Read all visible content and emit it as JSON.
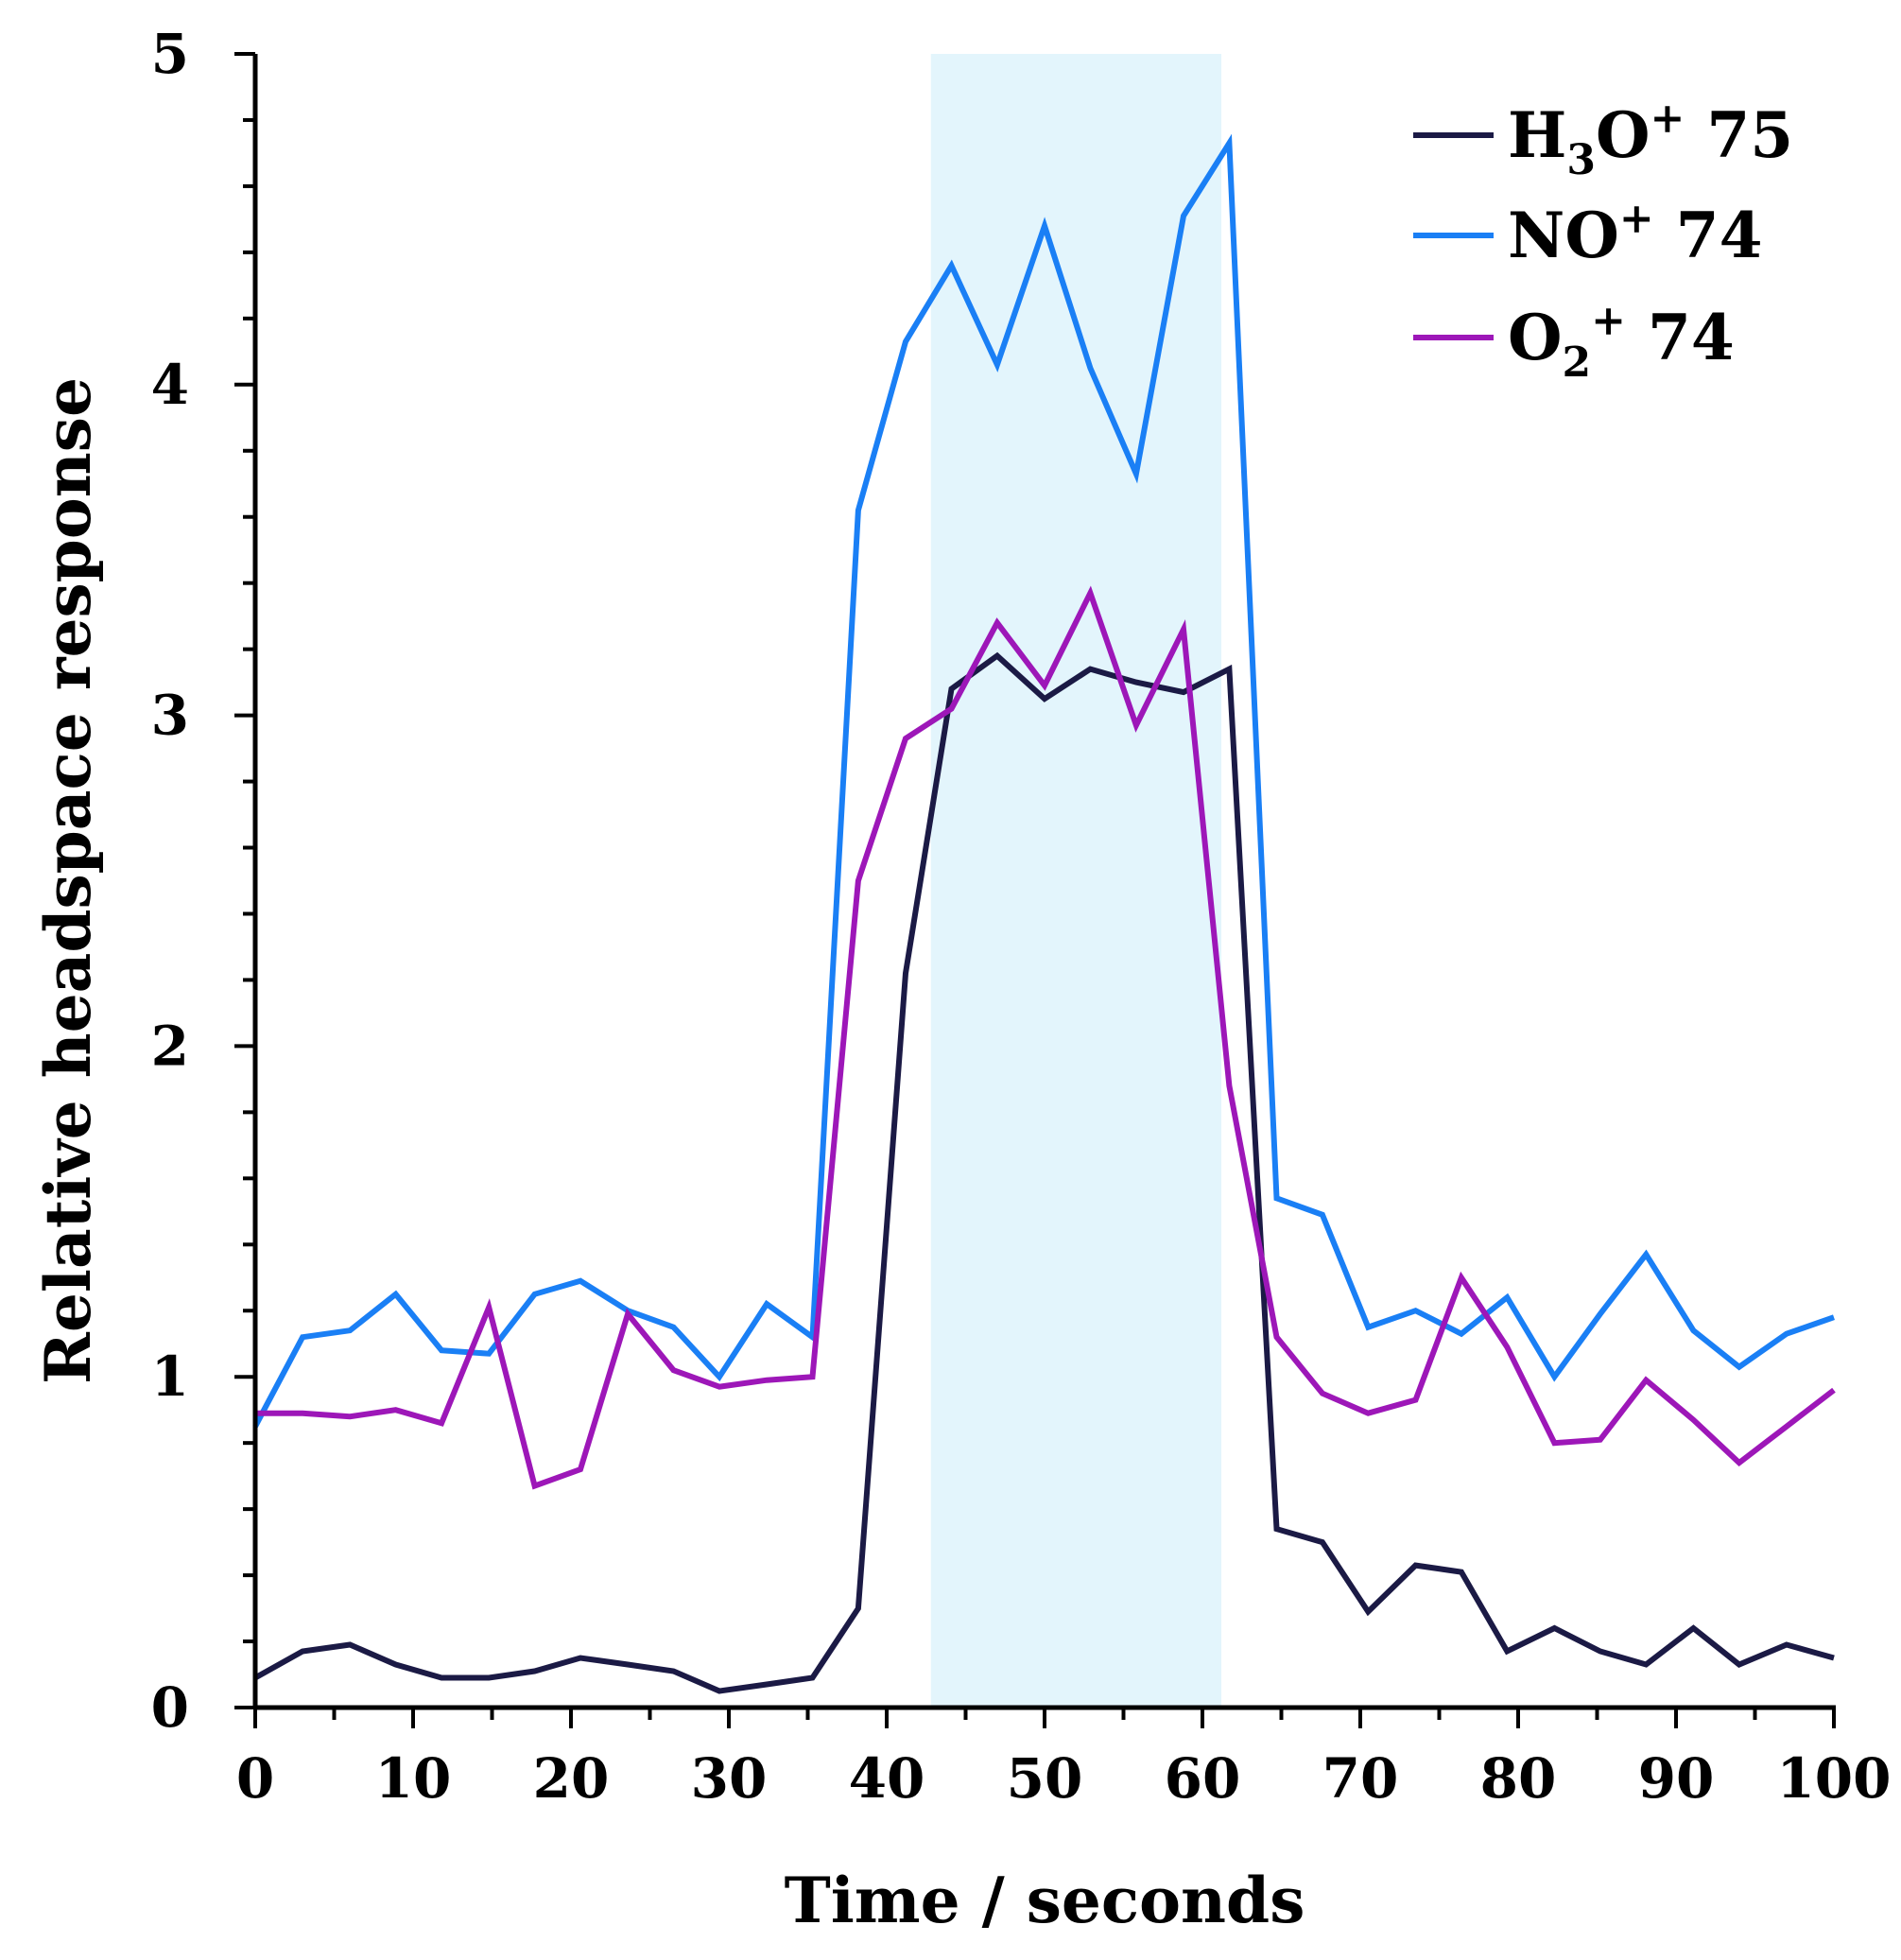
{
  "chart_data": {
    "type": "line",
    "title": "",
    "xlabel": "Time / seconds",
    "ylabel": "Relative headspace response",
    "xlim": [
      0,
      100
    ],
    "ylim": [
      0,
      5
    ],
    "xticks": [
      0,
      10,
      20,
      30,
      40,
      50,
      60,
      70,
      80,
      90,
      100
    ],
    "yticks": [
      0,
      1,
      2,
      3,
      4,
      5
    ],
    "x_tick_labels": [
      "0",
      "10",
      "20",
      "30",
      "40",
      "50",
      "60",
      "70",
      "80",
      "90",
      "100"
    ],
    "y_tick_labels": [
      "0",
      "1",
      "2",
      "3",
      "4",
      "5"
    ],
    "grid": false,
    "legend_position": "top-right",
    "shaded_region": {
      "x_start": 42.8,
      "x_end": 61.2,
      "color": "#e3f5fc"
    },
    "x": [
      0,
      3,
      6,
      8.9,
      11.8,
      14.8,
      17.7,
      20.6,
      23.6,
      26.5,
      29.4,
      32.4,
      35.3,
      38.2,
      41.2,
      44.1,
      47,
      50,
      52.9,
      55.8,
      58.8,
      61.7,
      64.7,
      67.6,
      70.5,
      73.5,
      76.4,
      79.3,
      82.3,
      85.2,
      88.1,
      91.1,
      94,
      97,
      100
    ],
    "series": [
      {
        "name": "H3O+ 75",
        "label_main": "H",
        "label_sub": "3",
        "label_after_sub": "O",
        "label_sup": "+",
        "label_tail": " 75",
        "color": "#1b1a45",
        "values": [
          0.09,
          0.17,
          0.19,
          0.13,
          0.09,
          0.09,
          0.11,
          0.15,
          0.13,
          0.11,
          0.05,
          0.07,
          0.09,
          0.3,
          2.22,
          3.08,
          3.18,
          3.05,
          3.14,
          3.1,
          3.07,
          3.14,
          0.54,
          0.5,
          0.29,
          0.43,
          0.41,
          0.17,
          0.24,
          0.17,
          0.13,
          0.24,
          0.13,
          0.19,
          0.15
        ]
      },
      {
        "name": "NO+ 74",
        "label_main": "NO",
        "label_sub": "",
        "label_after_sub": "",
        "label_sup": "+",
        "label_tail": " 74",
        "color": "#1a7ff5",
        "values": [
          0.85,
          1.12,
          1.14,
          1.25,
          1.08,
          1.07,
          1.25,
          1.29,
          1.2,
          1.15,
          1.0,
          1.22,
          1.12,
          3.62,
          4.13,
          4.36,
          4.06,
          4.48,
          4.05,
          3.73,
          4.51,
          4.73,
          1.54,
          1.49,
          1.15,
          1.2,
          1.13,
          1.24,
          1.0,
          1.19,
          1.37,
          1.14,
          1.03,
          1.13,
          1.18
        ]
      },
      {
        "name": "O2+ 74",
        "label_main": "O",
        "label_sub": "2",
        "label_after_sub": "",
        "label_sup": "+",
        "label_tail": " 74",
        "color": "#9d17b8",
        "values": [
          0.89,
          0.89,
          0.88,
          0.9,
          0.86,
          1.21,
          0.67,
          0.72,
          1.19,
          1.02,
          0.97,
          0.99,
          1.0,
          2.5,
          2.93,
          3.02,
          3.28,
          3.09,
          3.37,
          2.97,
          3.26,
          1.88,
          1.12,
          0.95,
          0.89,
          0.93,
          1.3,
          1.09,
          0.8,
          0.81,
          0.99,
          0.87,
          0.74,
          0.85,
          0.96
        ]
      }
    ]
  }
}
